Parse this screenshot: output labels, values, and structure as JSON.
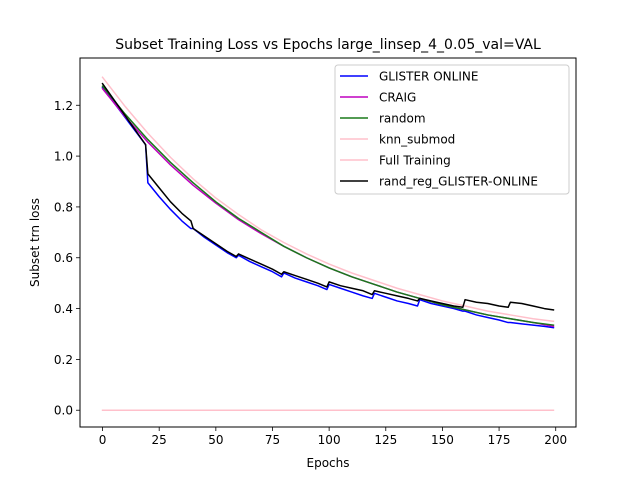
{
  "chart_data": {
    "type": "line",
    "title": "Subset Training Loss vs Epochs large_linsep_4_0.05_val=VAL",
    "xlabel": "Epochs",
    "ylabel": "Subset trn loss",
    "xlim": [
      -9.95,
      208.95
    ],
    "ylim": [
      -0.066,
      1.386
    ],
    "xticks": [
      0,
      25,
      50,
      75,
      100,
      125,
      150,
      175,
      200
    ],
    "yticks": [
      0.0,
      0.2,
      0.4,
      0.6,
      0.8,
      1.0,
      1.2
    ],
    "xtick_labels": [
      "0",
      "25",
      "50",
      "75",
      "100",
      "125",
      "150",
      "175",
      "200"
    ],
    "ytick_labels": [
      "0.0",
      "0.2",
      "0.4",
      "0.6",
      "0.8",
      "1.0",
      "1.2"
    ],
    "grid": false,
    "legend_position": "top-right",
    "series": [
      {
        "name": "GLISTER ONLINE",
        "color": "#0000ff",
        "x": [
          0,
          19,
          20,
          25,
          30,
          35,
          39,
          40,
          45,
          50,
          55,
          59,
          60,
          65,
          70,
          75,
          79,
          80,
          85,
          90,
          95,
          99,
          100,
          105,
          110,
          115,
          119,
          120,
          125,
          130,
          135,
          139,
          140,
          145,
          150,
          155,
          159,
          160,
          165,
          170,
          175,
          179,
          180,
          185,
          190,
          195,
          199
        ],
        "values": [
          1.27,
          1.045,
          0.895,
          0.84,
          0.79,
          0.745,
          0.715,
          0.715,
          0.68,
          0.65,
          0.62,
          0.6,
          0.61,
          0.585,
          0.565,
          0.545,
          0.525,
          0.54,
          0.52,
          0.505,
          0.49,
          0.475,
          0.495,
          0.48,
          0.465,
          0.45,
          0.44,
          0.46,
          0.445,
          0.43,
          0.42,
          0.41,
          0.435,
          0.42,
          0.41,
          0.4,
          0.39,
          0.39,
          0.375,
          0.365,
          0.355,
          0.345,
          0.345,
          0.34,
          0.335,
          0.33,
          0.325
        ]
      },
      {
        "name": "CRAIG",
        "color": "#bf00bf",
        "x": [
          0,
          10,
          20,
          30,
          40,
          50,
          60,
          70,
          80,
          90,
          100,
          110,
          120,
          130,
          140,
          150,
          160,
          170,
          180,
          190,
          199
        ],
        "values": [
          1.265,
          1.155,
          1.055,
          0.965,
          0.885,
          0.815,
          0.75,
          0.695,
          0.645,
          0.6,
          0.56,
          0.525,
          0.495,
          0.465,
          0.44,
          0.415,
          0.395,
          0.375,
          0.36,
          0.345,
          0.33
        ]
      },
      {
        "name": "random",
        "color": "#1a7a1a",
        "x": [
          0,
          10,
          20,
          30,
          40,
          50,
          60,
          70,
          80,
          90,
          100,
          110,
          120,
          130,
          140,
          150,
          160,
          170,
          180,
          190,
          199
        ],
        "values": [
          1.275,
          1.165,
          1.065,
          0.975,
          0.895,
          0.82,
          0.755,
          0.7,
          0.645,
          0.6,
          0.56,
          0.525,
          0.495,
          0.465,
          0.44,
          0.415,
          0.395,
          0.375,
          0.36,
          0.345,
          0.335
        ]
      },
      {
        "name": "knn_submod",
        "color": "#ffc0cb",
        "x": [
          0,
          199
        ],
        "values": [
          0.0,
          0.0
        ]
      },
      {
        "name": "Full Training",
        "color": "#ffc0cb",
        "x": [
          0,
          10,
          20,
          30,
          40,
          50,
          60,
          70,
          80,
          90,
          100,
          110,
          120,
          130,
          140,
          150,
          160,
          170,
          180,
          190,
          199
        ],
        "values": [
          1.31,
          1.195,
          1.09,
          0.995,
          0.91,
          0.835,
          0.77,
          0.71,
          0.66,
          0.615,
          0.575,
          0.54,
          0.51,
          0.48,
          0.455,
          0.43,
          0.41,
          0.39,
          0.375,
          0.36,
          0.35
        ]
      },
      {
        "name": "rand_reg_GLISTER-ONLINE",
        "color": "#000000",
        "x": [
          0,
          19,
          20,
          25,
          30,
          35,
          39,
          40,
          45,
          50,
          55,
          59,
          60,
          65,
          70,
          75,
          79,
          80,
          85,
          90,
          95,
          99,
          100,
          105,
          110,
          115,
          119,
          120,
          125,
          130,
          135,
          139,
          140,
          145,
          150,
          155,
          159,
          160,
          165,
          170,
          175,
          179,
          180,
          185,
          190,
          195,
          199
        ],
        "values": [
          1.285,
          1.045,
          0.93,
          0.875,
          0.82,
          0.775,
          0.745,
          0.715,
          0.685,
          0.655,
          0.625,
          0.605,
          0.615,
          0.595,
          0.575,
          0.555,
          0.535,
          0.545,
          0.53,
          0.515,
          0.5,
          0.485,
          0.505,
          0.49,
          0.48,
          0.47,
          0.455,
          0.47,
          0.46,
          0.45,
          0.44,
          0.43,
          0.44,
          0.43,
          0.42,
          0.41,
          0.405,
          0.435,
          0.425,
          0.42,
          0.41,
          0.405,
          0.425,
          0.42,
          0.41,
          0.4,
          0.395
        ]
      }
    ]
  }
}
